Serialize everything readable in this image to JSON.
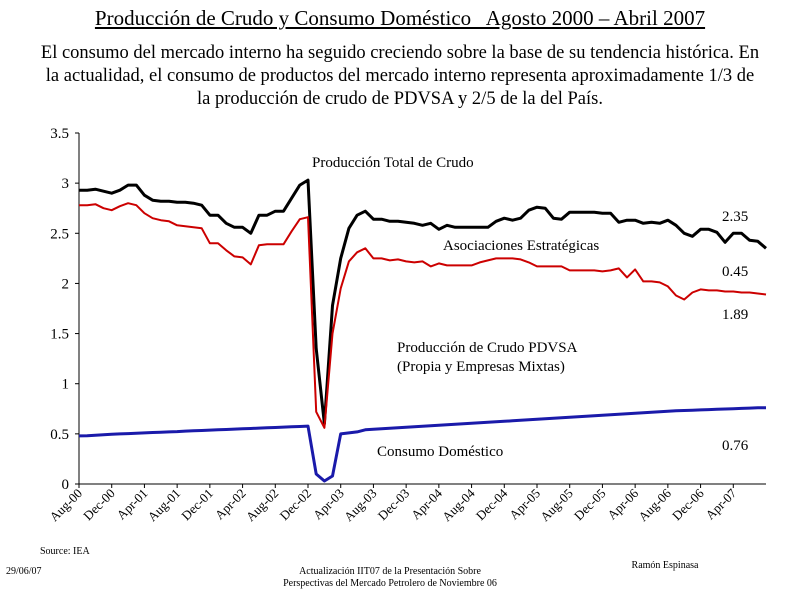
{
  "header": {
    "title": "Producción de Crudo y Consumo Doméstico   Agosto 2000 – Abril 2007",
    "subtitle": "El consumo del mercado interno ha seguido creciendo sobre la base de su tendencia histórica. En la actualidad, el consumo de productos del mercado interno representa aproximadamente 1/3 de la producción de crudo de PDVSA y 2/5 de la del País."
  },
  "footer": {
    "source": "Source: IEA",
    "date": "29/06/07",
    "line1": "Actualización IIT07 de la Presentación Sobre",
    "line2": "Perspectivas del Mercado Petrolero de Noviembre 06",
    "author": "Ramón Espinasa"
  },
  "chart_data": {
    "type": "line",
    "ylim": [
      0,
      3.5
    ],
    "yticks": [
      "0",
      "0.5",
      "1",
      "1.5",
      "2",
      "2.5",
      "3",
      "3.5"
    ],
    "xticks": [
      "Aug-00",
      "Dec-00",
      "Apr-01",
      "Aug-01",
      "Dec-01",
      "Apr-02",
      "Aug-02",
      "Dec-02",
      "Apr-03",
      "Aug-03",
      "Dec-03",
      "Apr-04",
      "Aug-04",
      "Dec-04",
      "Apr-05",
      "Aug-05",
      "Dec-05",
      "Apr-06",
      "Aug-06",
      "Dec-06",
      "Apr-07"
    ],
    "series": [
      {
        "name": "Producción Total de Crudo",
        "color": "#000000",
        "values": [
          2.93,
          2.93,
          2.94,
          2.92,
          2.9,
          2.93,
          2.98,
          2.98,
          2.88,
          2.83,
          2.82,
          2.82,
          2.81,
          2.81,
          2.8,
          2.78,
          2.68,
          2.68,
          2.6,
          2.56,
          2.56,
          2.5,
          2.68,
          2.68,
          2.72,
          2.72,
          2.85,
          2.98,
          3.03,
          1.35,
          0.6,
          1.78,
          2.25,
          2.55,
          2.68,
          2.72,
          2.64,
          2.64,
          2.62,
          2.62,
          2.61,
          2.6,
          2.58,
          2.6,
          2.54,
          2.58,
          2.56,
          2.56,
          2.56,
          2.56,
          2.56,
          2.62,
          2.65,
          2.63,
          2.65,
          2.73,
          2.76,
          2.75,
          2.65,
          2.64,
          2.71,
          2.71,
          2.71,
          2.71,
          2.7,
          2.7,
          2.61,
          2.63,
          2.63,
          2.6,
          2.61,
          2.6,
          2.63,
          2.58,
          2.5,
          2.47,
          2.54,
          2.54,
          2.51,
          2.41,
          2.5,
          2.5,
          2.43,
          2.42,
          2.35
        ]
      },
      {
        "name": "Producción de Crudo PDVSA",
        "color": "#cc0000",
        "values": [
          2.78,
          2.78,
          2.79,
          2.75,
          2.73,
          2.77,
          2.8,
          2.78,
          2.7,
          2.65,
          2.63,
          2.62,
          2.58,
          2.57,
          2.56,
          2.55,
          2.4,
          2.4,
          2.33,
          2.27,
          2.26,
          2.19,
          2.38,
          2.39,
          2.39,
          2.39,
          2.52,
          2.64,
          2.66,
          0.72,
          0.56,
          1.5,
          1.95,
          2.22,
          2.31,
          2.35,
          2.25,
          2.25,
          2.23,
          2.24,
          2.22,
          2.21,
          2.22,
          2.17,
          2.2,
          2.18,
          2.18,
          2.18,
          2.18,
          2.21,
          2.23,
          2.25,
          2.25,
          2.25,
          2.24,
          2.21,
          2.17,
          2.17,
          2.17,
          2.17,
          2.13,
          2.13,
          2.13,
          2.13,
          2.12,
          2.13,
          2.15,
          2.06,
          2.14,
          2.02,
          2.02,
          2.01,
          1.97,
          1.88,
          1.84,
          1.91,
          1.94,
          1.93,
          1.93,
          1.92,
          1.92,
          1.91,
          1.91,
          1.9,
          1.89
        ]
      },
      {
        "name": "Consumo Doméstico",
        "color": "#1a1aaa",
        "values": [
          0.48,
          0.482,
          0.487,
          0.492,
          0.496,
          0.5,
          0.503,
          0.507,
          0.51,
          0.514,
          0.517,
          0.52,
          0.523,
          0.527,
          0.53,
          0.533,
          0.537,
          0.54,
          0.543,
          0.547,
          0.55,
          0.553,
          0.557,
          0.56,
          0.563,
          0.567,
          0.57,
          0.573,
          0.577,
          0.1,
          0.03,
          0.08,
          0.5,
          0.51,
          0.52,
          0.54,
          0.545,
          0.55,
          0.555,
          0.56,
          0.565,
          0.57,
          0.575,
          0.58,
          0.585,
          0.59,
          0.595,
          0.6,
          0.605,
          0.61,
          0.615,
          0.62,
          0.625,
          0.63,
          0.635,
          0.64,
          0.645,
          0.65,
          0.655,
          0.66,
          0.665,
          0.67,
          0.675,
          0.68,
          0.685,
          0.69,
          0.695,
          0.7,
          0.705,
          0.71,
          0.715,
          0.72,
          0.725,
          0.73,
          0.733,
          0.736,
          0.739,
          0.742,
          0.745,
          0.748,
          0.751,
          0.754,
          0.757,
          0.76,
          0.76
        ]
      }
    ],
    "annotations": {
      "total_label": "Producción Total de Crudo",
      "asociaciones_label": "Asociaciones Estratégicas",
      "pdvsa_label_1": "Producción de Crudo PDVSA",
      "pdvsa_label_2": "(Propia y Empresas Mixtas)",
      "consumo_label": "Consumo Doméstico",
      "total_end": "2.35",
      "asociaciones_end": "0.45",
      "pdvsa_end": "1.89",
      "consumo_end": "0.76"
    }
  }
}
